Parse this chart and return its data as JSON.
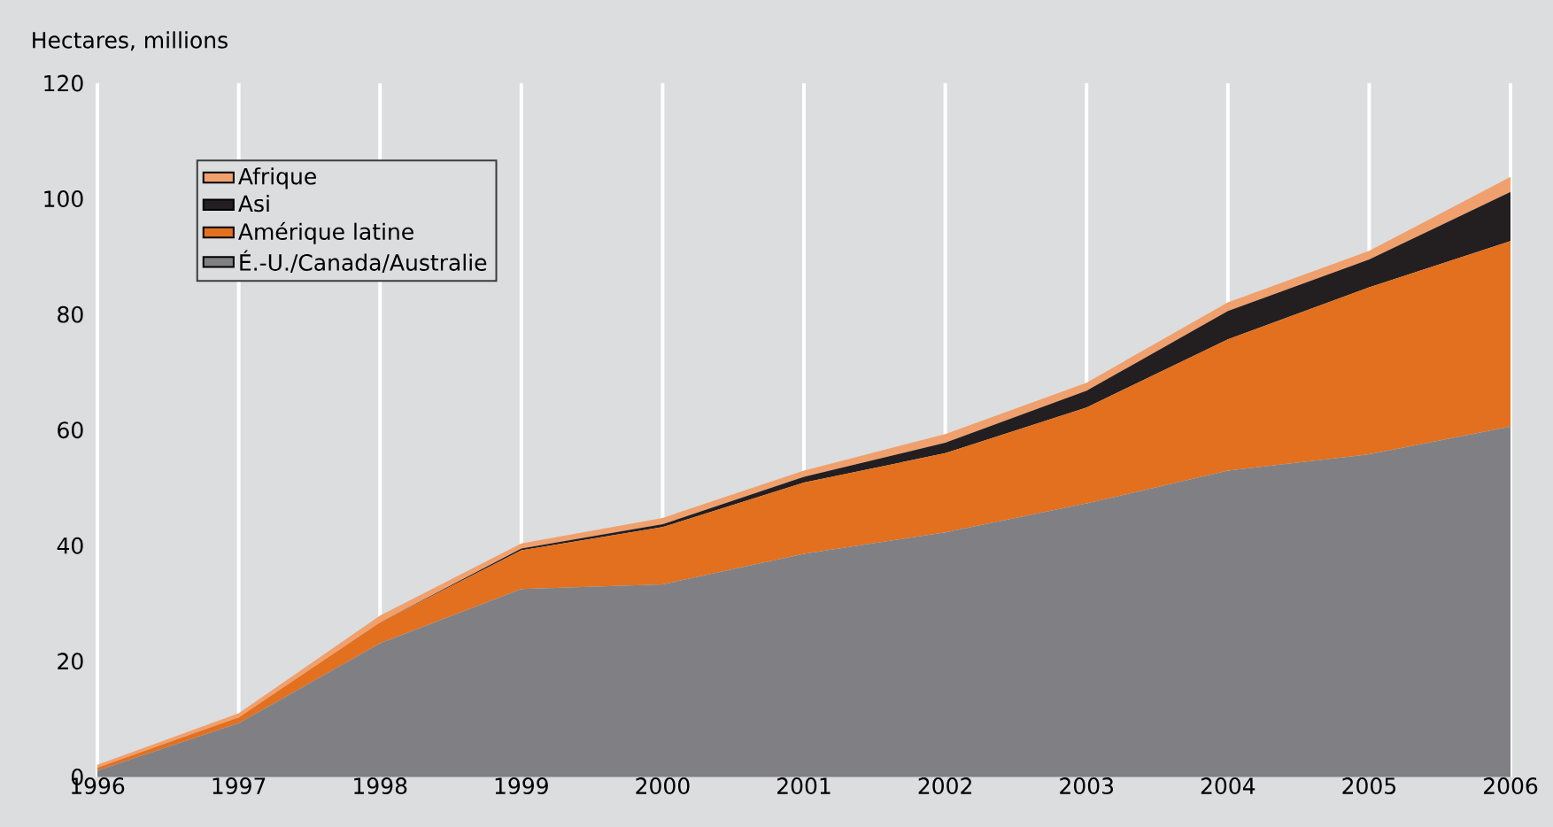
{
  "chart_data": {
    "type": "area",
    "ylabel": "Hectares, millions",
    "stacked": true,
    "grid": "x",
    "legend": "top left",
    "x": [
      1996,
      1997,
      1998,
      1999,
      2000,
      2001,
      2002,
      2003,
      2004,
      2005,
      2006
    ],
    "xlim": [
      1996,
      2006
    ],
    "xticks": [
      1996,
      1997,
      1998,
      1999,
      2000,
      2001,
      2002,
      2003,
      2004,
      2005,
      2006
    ],
    "ylim": [
      0,
      120
    ],
    "yticks": [
      0,
      20,
      40,
      60,
      80,
      100,
      120
    ],
    "series": [
      {
        "name": "É.-U./Canada/Australie",
        "color": "#808084",
        "values": [
          1.1,
          9.3,
          23.1,
          32.5,
          33.3,
          38.6,
          42.3,
          47.3,
          53.0,
          55.8,
          60.6
        ]
      },
      {
        "name": "Amérique latine",
        "color": "#e2701f",
        "values": [
          0.5,
          1.0,
          3.6,
          6.7,
          9.9,
          12.3,
          13.7,
          16.6,
          22.7,
          28.9,
          32.1
        ]
      },
      {
        "name": "Asi",
        "color": "#231f20",
        "values": [
          0,
          0,
          0,
          0.3,
          0.5,
          1.0,
          1.8,
          2.9,
          4.9,
          4.8,
          8.5
        ]
      },
      {
        "name": "Afrique",
        "color": "#f0a06c",
        "values": [
          0.5,
          0.7,
          1.2,
          0.9,
          1.1,
          1.1,
          1.5,
          1.4,
          1.5,
          1.5,
          2.6
        ]
      }
    ]
  }
}
